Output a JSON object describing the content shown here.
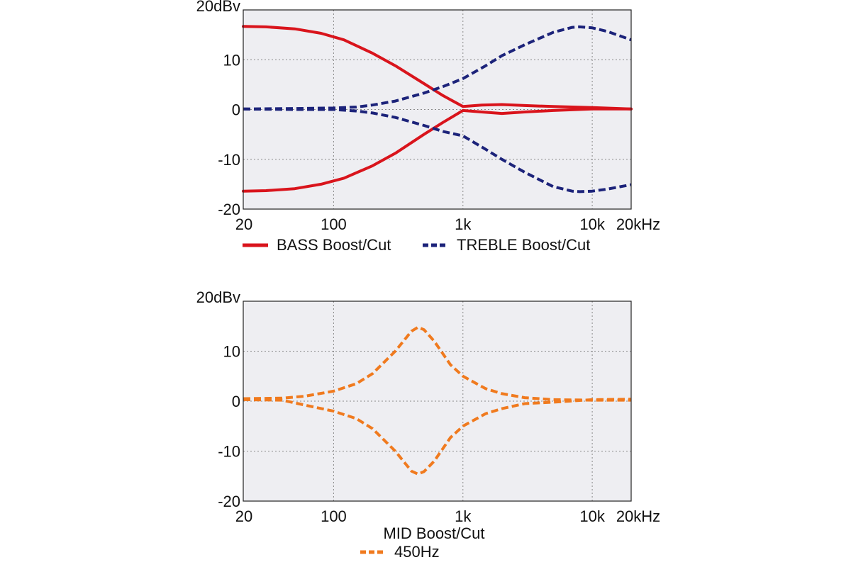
{
  "chart_data": [
    {
      "type": "line",
      "title": "",
      "xscale": "log",
      "xlim": [
        20,
        20000
      ],
      "ylim": [
        -20,
        20
      ],
      "x_ticks": [
        {
          "value": 20,
          "label": "20"
        },
        {
          "value": 100,
          "label": "100"
        },
        {
          "value": 1000,
          "label": "1k"
        },
        {
          "value": 10000,
          "label": "10k"
        },
        {
          "value": 20000,
          "label": "20kHz"
        }
      ],
      "y_ticks": [
        {
          "value": 20,
          "label": "20dBv"
        },
        {
          "value": 10,
          "label": "10"
        },
        {
          "value": 0,
          "label": "0"
        },
        {
          "value": -10,
          "label": "-10"
        },
        {
          "value": -20,
          "label": "-20"
        }
      ],
      "grid": true,
      "legend_position": "bottom",
      "legend_title": "",
      "series": [
        {
          "name": "BASS Boost/Cut",
          "color": "#d9141c",
          "style": "solid",
          "curves": [
            {
              "x": [
                20,
                30,
                50,
                80,
                120,
                200,
                300,
                500,
                700,
                1000,
                1400,
                2000,
                3000,
                5000,
                10000,
                20000
              ],
              "y": [
                16.7,
                16.6,
                16.2,
                15.3,
                14.0,
                11.3,
                8.8,
                5.2,
                2.8,
                0.6,
                0.9,
                1.0,
                0.8,
                0.6,
                0.4,
                0.1
              ]
            },
            {
              "x": [
                20,
                30,
                50,
                80,
                120,
                200,
                300,
                500,
                700,
                1000,
                1400,
                2000,
                3000,
                5000,
                10000,
                20000
              ],
              "y": [
                -16.4,
                -16.3,
                -15.9,
                -15.0,
                -13.8,
                -11.3,
                -8.8,
                -5.0,
                -2.6,
                -0.2,
                -0.5,
                -0.8,
                -0.5,
                -0.2,
                0.1,
                0.1
              ]
            }
          ]
        },
        {
          "name": "TREBLE Boost/Cut",
          "color": "#1c237a",
          "style": "dashed",
          "curves": [
            {
              "x": [
                20,
                50,
                100,
                150,
                200,
                300,
                500,
                700,
                1000,
                1500,
                2000,
                3000,
                5000,
                7000,
                8000,
                10000,
                13000,
                20000
              ],
              "y": [
                0.1,
                0.2,
                0.3,
                0.5,
                0.9,
                1.7,
                3.3,
                4.6,
                6.2,
                8.8,
                10.8,
                13.0,
                15.5,
                16.5,
                16.6,
                16.4,
                15.7,
                14.0
              ]
            },
            {
              "x": [
                20,
                50,
                100,
                150,
                200,
                300,
                500,
                700,
                1000,
                1500,
                2000,
                3000,
                5000,
                7000,
                8000,
                10000,
                13000,
                20000
              ],
              "y": [
                0.1,
                0.0,
                0.0,
                -0.3,
                -0.7,
                -1.6,
                -3.2,
                -4.4,
                -5.3,
                -8.0,
                -10.0,
                -12.6,
                -15.5,
                -16.4,
                -16.5,
                -16.4,
                -16.0,
                -15.1
              ]
            }
          ]
        }
      ]
    },
    {
      "type": "line",
      "title": "MID Boost/Cut",
      "xscale": "log",
      "xlim": [
        20,
        20000
      ],
      "ylim": [
        -20,
        20
      ],
      "x_ticks": [
        {
          "value": 20,
          "label": "20"
        },
        {
          "value": 100,
          "label": "100"
        },
        {
          "value": 1000,
          "label": "1k"
        },
        {
          "value": 10000,
          "label": "10k"
        },
        {
          "value": 20000,
          "label": "20kHz"
        }
      ],
      "y_ticks": [
        {
          "value": 20,
          "label": "20dBv"
        },
        {
          "value": 10,
          "label": "10"
        },
        {
          "value": 0,
          "label": "0"
        },
        {
          "value": -10,
          "label": "-10"
        },
        {
          "value": -20,
          "label": "-20"
        }
      ],
      "grid": true,
      "legend_position": "bottom",
      "series": [
        {
          "name": "450Hz",
          "color": "#f07a1e",
          "style": "dashed",
          "curves": [
            {
              "x": [
                20,
                40,
                60,
                100,
                150,
                200,
                300,
                400,
                450,
                500,
                600,
                800,
                1000,
                1500,
                2000,
                3000,
                5000,
                10000,
                20000
              ],
              "y": [
                0.5,
                0.6,
                1.0,
                2.0,
                3.5,
                5.5,
                10.0,
                14.0,
                14.8,
                14.3,
                12.0,
                7.3,
                5.0,
                2.5,
                1.5,
                0.7,
                0.3,
                0.2,
                0.2
              ]
            },
            {
              "x": [
                20,
                40,
                60,
                100,
                150,
                200,
                300,
                400,
                450,
                500,
                600,
                800,
                1000,
                1500,
                2000,
                3000,
                5000,
                10000,
                20000
              ],
              "y": [
                0.3,
                0.2,
                -0.8,
                -2.0,
                -3.5,
                -5.5,
                -10.0,
                -14.0,
                -14.6,
                -14.1,
                -12.0,
                -7.3,
                -5.0,
                -2.5,
                -1.5,
                -0.5,
                -0.2,
                0.3,
                0.4
              ]
            }
          ]
        }
      ]
    }
  ]
}
